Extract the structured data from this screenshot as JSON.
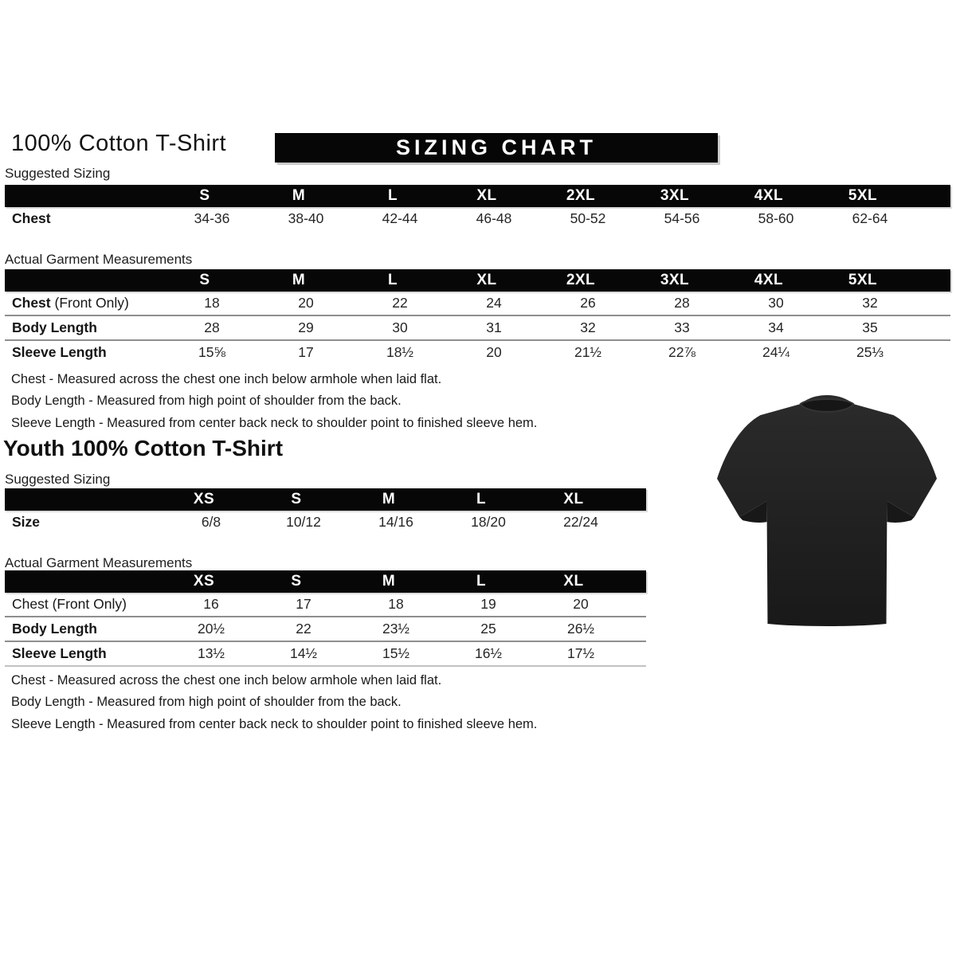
{
  "header": {
    "title": "100% Cotton T-Shirt",
    "banner": "SIZING CHART"
  },
  "adult": {
    "suggested_sizing_label": "Suggested Sizing",
    "suggested_table": {
      "columns": [
        "S",
        "M",
        "L",
        "XL",
        "2XL",
        "3XL",
        "4XL",
        "5XL"
      ],
      "rows": [
        {
          "label": "Chest",
          "suffix": "",
          "bold": true,
          "values": [
            "34-36",
            "38-40",
            "42-44",
            "46-48",
            "50-52",
            "54-56",
            "58-60",
            "62-64"
          ]
        }
      ]
    },
    "actual_measurements_label": "Actual Garment Measurements",
    "actual_table": {
      "columns": [
        "S",
        "M",
        "L",
        "XL",
        "2XL",
        "3XL",
        "4XL",
        "5XL"
      ],
      "rows": [
        {
          "label": "Chest",
          "suffix": " (Front Only)",
          "bold": true,
          "values": [
            "18",
            "20",
            "22",
            "24",
            "26",
            "28",
            "30",
            "32"
          ]
        },
        {
          "label": "Body Length",
          "suffix": "",
          "bold": true,
          "values": [
            "28",
            "29",
            "30",
            "31",
            "32",
            "33",
            "34",
            "35"
          ]
        },
        {
          "label": "Sleeve Length",
          "suffix": "",
          "bold": true,
          "values": [
            "15⅝",
            "17",
            "18½",
            "20",
            "21½",
            "22⅞",
            "24¼",
            "25⅓"
          ]
        }
      ]
    },
    "notes": [
      "Chest - Measured across the chest one inch below armhole when laid flat.",
      "Body Length - Measured from high point of shoulder from the back.",
      "Sleeve Length - Measured from center back neck to shoulder point to finished sleeve hem."
    ]
  },
  "youth": {
    "title": "Youth 100% Cotton T-Shirt",
    "suggested_sizing_label": "Suggested Sizing",
    "suggested_table": {
      "columns": [
        "XS",
        "S",
        "M",
        "L",
        "XL"
      ],
      "rows": [
        {
          "label": "Size",
          "suffix": "",
          "bold": true,
          "values": [
            "6/8",
            "10/12",
            "14/16",
            "18/20",
            "22/24"
          ]
        }
      ]
    },
    "actual_measurements_label": "Actual Garment Measurements",
    "actual_table": {
      "columns": [
        "XS",
        "S",
        "M",
        "L",
        "XL"
      ],
      "rows": [
        {
          "label": "Chest",
          "suffix": " (Front Only)",
          "bold": false,
          "values": [
            "16",
            "17",
            "18",
            "19",
            "20"
          ]
        },
        {
          "label": "Body Length",
          "suffix": "",
          "bold": true,
          "values": [
            "20½",
            "22",
            "23½",
            "25",
            "26½"
          ]
        },
        {
          "label": "Sleeve Length",
          "suffix": "",
          "bold": true,
          "values": [
            "13½",
            "14½",
            "15½",
            "16½",
            "17½"
          ]
        }
      ]
    },
    "notes": [
      "Chest - Measured across the chest one inch below armhole when laid flat.",
      "Body Length - Measured from high point of shoulder from the back.",
      "Sleeve Length - Measured from center back neck to shoulder point to finished sleeve hem."
    ]
  },
  "image": {
    "tshirt_description": "black short-sleeve t-shirt front view",
    "tshirt_color": "#212121"
  },
  "colors": {
    "banner_bg": "#000000",
    "banner_text": "#ffffff",
    "table_header_bg": "#000000",
    "table_header_text": "#ffffff",
    "body_text": "#1c1c1c",
    "row_separator": "#8e8e8e"
  }
}
